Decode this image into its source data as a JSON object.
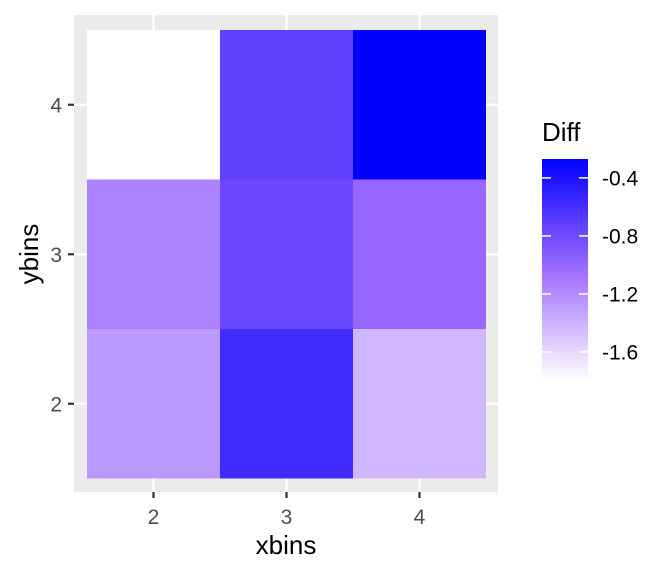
{
  "chart_data": {
    "type": "heatmap",
    "xlabel": "xbins",
    "ylabel": "ybins",
    "x_categories": [
      "2",
      "3",
      "4"
    ],
    "y_categories": [
      "2",
      "3",
      "4"
    ],
    "cells": [
      {
        "x": "2",
        "y": "4",
        "value": -1.8
      },
      {
        "x": "3",
        "y": "4",
        "value": -0.72
      },
      {
        "x": "4",
        "y": "4",
        "value": -0.27
      },
      {
        "x": "2",
        "y": "3",
        "value": -1.15
      },
      {
        "x": "3",
        "y": "3",
        "value": -0.78
      },
      {
        "x": "4",
        "y": "3",
        "value": -1.0
      },
      {
        "x": "2",
        "y": "2",
        "value": -1.27
      },
      {
        "x": "3",
        "y": "2",
        "value": -0.58
      },
      {
        "x": "4",
        "y": "2",
        "value": -1.42
      }
    ],
    "legend": {
      "title": "Diff",
      "ticks": [
        "-0.4",
        "-0.8",
        "-1.2",
        "-1.6"
      ],
      "tick_values": [
        -0.4,
        -0.8,
        -1.2,
        -1.6
      ],
      "range": [
        -1.8,
        -0.27
      ],
      "color_low": "#ffffff",
      "color_high": "#0000ff",
      "placement": "right"
    },
    "panel_background": "#ebebeb",
    "gridline_color": "#ffffff",
    "grid": true
  }
}
